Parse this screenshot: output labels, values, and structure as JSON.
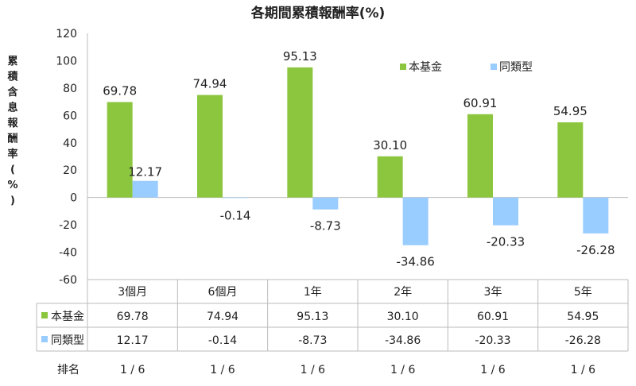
{
  "chart_data": {
    "type": "bar",
    "title": "各期間累積報酬率(%)",
    "ylabel": "累積含息報酬率(%)",
    "ylabel_chars": [
      "累",
      "積",
      "含",
      "息",
      "報",
      "酬",
      "率",
      "(",
      "%",
      ")"
    ],
    "ylim": [
      -60,
      120
    ],
    "yticks": [
      "120",
      "100",
      "80",
      "60",
      "40",
      "20",
      "0",
      "-20",
      "-40",
      "-60"
    ],
    "categories": [
      "3個月",
      "6個月",
      "1年",
      "2年",
      "3年",
      "5年"
    ],
    "series": [
      {
        "name": "本基金",
        "color": "#8CC63F",
        "values": [
          69.78,
          74.94,
          95.13,
          30.1,
          60.91,
          54.95
        ],
        "labels": [
          "69.78",
          "74.94",
          "95.13",
          "30.10",
          "60.91",
          "54.95"
        ]
      },
      {
        "name": "同類型",
        "color": "#99CCFF",
        "values": [
          12.17,
          -0.14,
          -8.73,
          -34.86,
          -20.33,
          -26.28
        ],
        "labels": [
          "12.17",
          "-0.14",
          "-8.73",
          "-34.86",
          "-20.33",
          "-26.28"
        ]
      }
    ],
    "legend": "top-right",
    "grid": false,
    "table": {
      "rank_label": "排名",
      "ranks": [
        "1 / 6",
        "1 / 6",
        "1 / 6",
        "1 / 6",
        "1 / 6",
        "1 / 6"
      ]
    }
  }
}
